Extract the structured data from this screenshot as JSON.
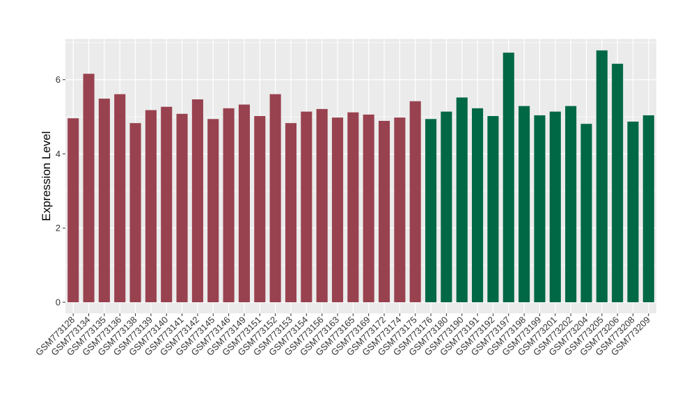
{
  "chart_data": {
    "type": "bar",
    "title": "",
    "xlabel": "",
    "ylabel": "Expression Level",
    "ylim": [
      -0.3,
      7.1
    ],
    "yticks": [
      0,
      2,
      4,
      6
    ],
    "grid": true,
    "legend": "none",
    "panel_background": "#ebebeb",
    "grid_color": "#ffffff",
    "groups": [
      {
        "color": "#99424f",
        "from": 0,
        "to": 23
      },
      {
        "color": "#006845",
        "from": 23,
        "to": 38
      }
    ],
    "categories": [
      "GSM773128",
      "GSM773134",
      "GSM773135",
      "GSM773136",
      "GSM773138",
      "GSM773139",
      "GSM773140",
      "GSM773141",
      "GSM773142",
      "GSM773145",
      "GSM773146",
      "GSM773149",
      "GSM773151",
      "GSM773152",
      "GSM773153",
      "GSM773154",
      "GSM773156",
      "GSM773163",
      "GSM773165",
      "GSM773169",
      "GSM773172",
      "GSM773174",
      "GSM773175",
      "GSM773176",
      "GSM773180",
      "GSM773190",
      "GSM773191",
      "GSM773192",
      "GSM773197",
      "GSM773198",
      "GSM773199",
      "GSM773201",
      "GSM773202",
      "GSM773204",
      "GSM773205",
      "GSM773206",
      "GSM773208",
      "GSM773209"
    ],
    "values": [
      4.96,
      6.16,
      5.49,
      5.61,
      4.83,
      5.18,
      5.27,
      5.08,
      5.47,
      4.94,
      5.23,
      5.33,
      5.02,
      5.61,
      4.83,
      5.14,
      5.21,
      4.98,
      5.12,
      5.06,
      4.89,
      4.98,
      5.42,
      4.94,
      5.14,
      5.52,
      5.23,
      5.02,
      6.73,
      5.29,
      5.04,
      5.14,
      5.29,
      4.81,
      6.79,
      6.43,
      4.87,
      5.04
    ]
  }
}
